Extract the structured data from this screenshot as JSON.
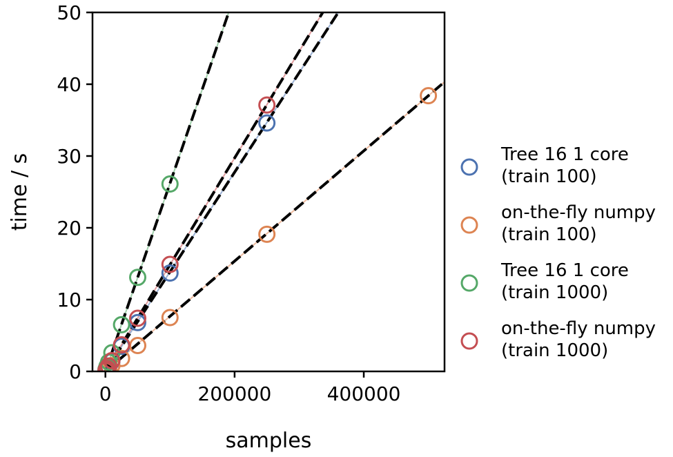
{
  "chart_data": {
    "type": "scatter",
    "title": "",
    "xlabel": "samples",
    "ylabel": "time / s",
    "xlim": [
      -20000,
      525000
    ],
    "ylim": [
      0,
      50
    ],
    "xticks": [
      0,
      200000,
      400000
    ],
    "yticks": [
      0,
      10,
      20,
      30,
      40,
      50
    ],
    "xtick_labels": [
      "0",
      "200000",
      "400000"
    ],
    "ytick_labels": [
      "0",
      "10",
      "20",
      "30",
      "40",
      "50"
    ],
    "grid": false,
    "legend_position": "right",
    "series": [
      {
        "name": "Tree 16 1 core\n(train 100)",
        "color": "#4C72B0",
        "x": [
          1000,
          2500,
          5000,
          10000,
          25000,
          50000,
          100000,
          250000
        ],
        "y": [
          0.15,
          0.35,
          0.7,
          1.4,
          3.5,
          6.8,
          13.7,
          34.6
        ],
        "fit_slope": 0.0001387
      },
      {
        "name": "on-the-fly numpy\n(train 100)",
        "color": "#DD8452",
        "x": [
          1000,
          2500,
          5000,
          10000,
          25000,
          50000,
          100000,
          250000,
          500000
        ],
        "y": [
          0.1,
          0.2,
          0.4,
          0.8,
          1.8,
          3.6,
          7.5,
          19.1,
          38.4
        ],
        "fit_slope": 7.68e-05
      },
      {
        "name": "Tree 16 1 core\n(train 1000)",
        "color": "#55A868",
        "x": [
          1000,
          2500,
          5000,
          10000,
          25000,
          50000,
          100000
        ],
        "y": [
          0.3,
          0.7,
          1.3,
          2.6,
          6.5,
          13.1,
          26.1
        ],
        "fit_slope": 0.000262
      },
      {
        "name": "on-the-fly numpy\n(train 1000)",
        "color": "#C44E52",
        "x": [
          1000,
          2500,
          5000,
          10000,
          25000,
          50000,
          100000,
          250000
        ],
        "y": [
          0.15,
          0.4,
          0.75,
          1.5,
          3.7,
          7.4,
          14.9,
          37.1
        ],
        "fit_slope": 0.0001486
      }
    ]
  }
}
